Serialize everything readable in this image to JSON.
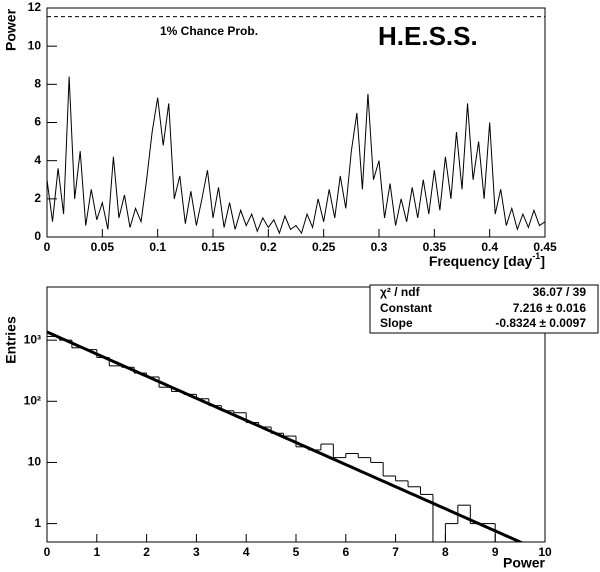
{
  "chart_data": [
    {
      "type": "line",
      "title": "H.E.S.S.",
      "ylabel": "Power",
      "xlabel": {
        "text": "Frequency [day",
        "sup": "-1",
        "end": "]"
      },
      "annotation": "1% Chance Prob.",
      "threshold": 11.55,
      "color": "#000000",
      "xlim": [
        0,
        0.45
      ],
      "xticks": [
        0,
        0.05,
        0.1,
        0.15,
        0.2,
        0.25,
        0.3,
        0.35,
        0.4,
        0.45
      ],
      "ylim": [
        0,
        12
      ],
      "yticks": [
        0,
        2,
        4,
        6,
        8,
        10,
        12
      ],
      "x": [
        0,
        0.005,
        0.01,
        0.015,
        0.02,
        0.025,
        0.03,
        0.035,
        0.04,
        0.045,
        0.05,
        0.055,
        0.06,
        0.065,
        0.07,
        0.075,
        0.08,
        0.085,
        0.09,
        0.095,
        0.1,
        0.105,
        0.11,
        0.115,
        0.12,
        0.125,
        0.13,
        0.135,
        0.14,
        0.145,
        0.15,
        0.155,
        0.16,
        0.165,
        0.17,
        0.175,
        0.18,
        0.185,
        0.19,
        0.195,
        0.2,
        0.205,
        0.21,
        0.215,
        0.22,
        0.225,
        0.23,
        0.235,
        0.24,
        0.245,
        0.25,
        0.255,
        0.26,
        0.265,
        0.27,
        0.275,
        0.28,
        0.285,
        0.29,
        0.295,
        0.3,
        0.305,
        0.31,
        0.315,
        0.32,
        0.325,
        0.33,
        0.335,
        0.34,
        0.345,
        0.35,
        0.355,
        0.36,
        0.365,
        0.37,
        0.375,
        0.38,
        0.385,
        0.39,
        0.395,
        0.4,
        0.405,
        0.41,
        0.415,
        0.42,
        0.425,
        0.43,
        0.435,
        0.44,
        0.445,
        0.45
      ],
      "values": [
        3.0,
        0.8,
        3.6,
        1.2,
        8.4,
        2.0,
        4.5,
        0.6,
        2.5,
        0.9,
        1.8,
        0.4,
        4.2,
        1.0,
        2.2,
        0.5,
        1.5,
        0.8,
        3.0,
        5.5,
        7.3,
        4.8,
        7.0,
        2.0,
        3.2,
        0.7,
        2.4,
        0.6,
        2.0,
        3.5,
        1.0,
        2.6,
        0.5,
        1.8,
        0.4,
        1.4,
        0.6,
        1.2,
        0.3,
        1.0,
        0.5,
        0.9,
        0.2,
        1.1,
        0.4,
        0.6,
        0.2,
        1.2,
        0.5,
        2.0,
        0.8,
        2.5,
        1.0,
        3.2,
        1.5,
        4.5,
        6.5,
        2.5,
        7.5,
        3.0,
        4.0,
        1.0,
        2.8,
        0.6,
        2.0,
        0.8,
        2.6,
        1.0,
        3.0,
        1.2,
        3.5,
        1.4,
        4.2,
        2.0,
        5.5,
        2.5,
        7.0,
        3.0,
        5.0,
        2.0,
        6.0,
        1.2,
        2.5,
        0.6,
        1.5,
        0.4,
        1.2,
        0.5,
        1.4,
        0.6,
        0.8
      ]
    },
    {
      "type": "histogram",
      "xlabel": "Power",
      "ylabel": "Entries",
      "log_y": true,
      "color": "#000000",
      "xlim": [
        0,
        10
      ],
      "xticks": [
        0,
        1,
        2,
        3,
        4,
        5,
        6,
        7,
        8,
        9,
        10
      ],
      "ylim": [
        0.5,
        7400
      ],
      "yticks": [
        1,
        10,
        {
          "value": 100,
          "label": "10²"
        },
        {
          "value": 1000,
          "label": "10³"
        }
      ],
      "bins": [
        0,
        0.25,
        0.5,
        0.75,
        1,
        1.25,
        1.5,
        1.75,
        2,
        2.25,
        2.5,
        2.75,
        3,
        3.25,
        3.5,
        3.75,
        4,
        4.25,
        4.5,
        4.75,
        5,
        5.25,
        5.5,
        5.75,
        6,
        6.25,
        6.5,
        6.75,
        7,
        7.25,
        7.5,
        7.75,
        8,
        8.25,
        8.5,
        8.75,
        9,
        9.25,
        9.5,
        9.75,
        10
      ],
      "counts": [
        1150,
        1000,
        750,
        700,
        520,
        380,
        360,
        290,
        250,
        170,
        145,
        130,
        110,
        85,
        70,
        65,
        45,
        38,
        30,
        27,
        18,
        16,
        20,
        12,
        14,
        12,
        10,
        6,
        5,
        4,
        3,
        0,
        1,
        2,
        1,
        1,
        0,
        0,
        0,
        0
      ],
      "stats": [
        {
          "name": "χ² / ndf",
          "value_label": "36.07 / 39"
        },
        {
          "name": "Constant",
          "value": 7.216,
          "error": 0.016,
          "value_label": "7.216 ± 0.016"
        },
        {
          "name": "Slope",
          "value": -0.8324,
          "error": 0.0097,
          "value_label": "-0.8324 ± 0.0097"
        }
      ]
    }
  ]
}
